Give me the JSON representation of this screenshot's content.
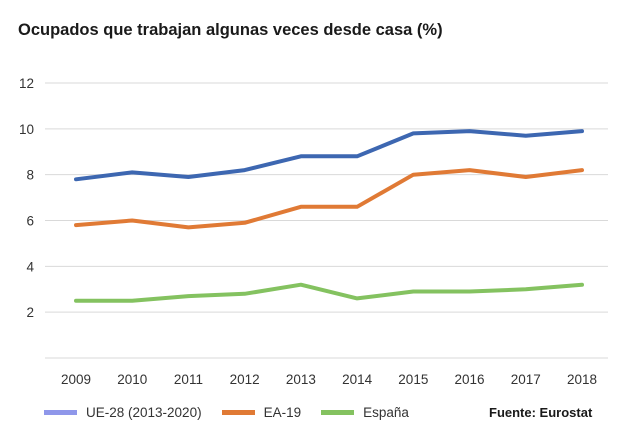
{
  "chart_data": {
    "type": "line",
    "title": "Ocupados que trabajan algunas veces desde casa (%)",
    "xlabel": "",
    "ylabel": "",
    "categories": [
      "2009",
      "2010",
      "2011",
      "2012",
      "2013",
      "2014",
      "2015",
      "2016",
      "2017",
      "2018"
    ],
    "ylim": [
      0,
      12
    ],
    "yticks": [
      "2",
      "4",
      "6",
      "8",
      "10",
      "12"
    ],
    "grid": true,
    "legend_position": "bottom",
    "series": [
      {
        "name": "UE-28 (2013-2020)",
        "line_color": "#3d67b1",
        "legend_color": "#8f97ea",
        "values": [
          7.8,
          8.1,
          7.9,
          8.2,
          8.8,
          8.8,
          9.8,
          9.9,
          9.7,
          9.9
        ]
      },
      {
        "name": "EA-19",
        "line_color": "#e07a35",
        "legend_color": "#e07a35",
        "values": [
          5.8,
          6.0,
          5.7,
          5.9,
          6.6,
          6.6,
          8.0,
          8.2,
          7.9,
          8.2
        ]
      },
      {
        "name": "España",
        "line_color": "#84c260",
        "legend_color": "#84c260",
        "values": [
          2.5,
          2.5,
          2.7,
          2.8,
          3.2,
          2.6,
          2.9,
          2.9,
          3.0,
          3.2
        ]
      }
    ]
  },
  "source_note": "Fuente: Eurostat",
  "colors": {
    "grid": "#d9d9d9",
    "axis_text": "#333333",
    "title_text": "#1a1a1a"
  }
}
